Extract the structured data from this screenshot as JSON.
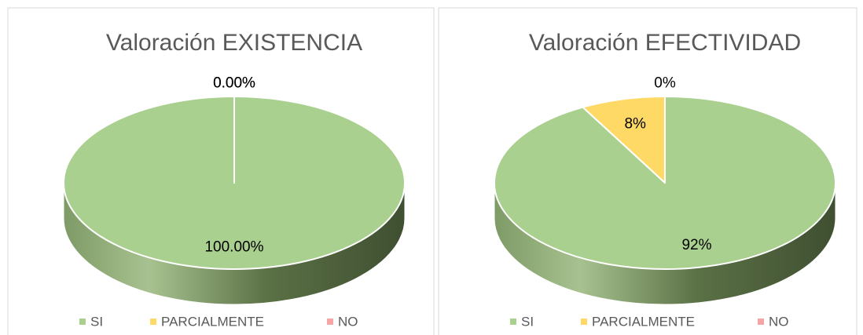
{
  "chart_data": [
    {
      "type": "pie3d",
      "title": "Valoración EXISTENCIA",
      "categories": [
        "SI",
        "PARCIALMENTE",
        "NO"
      ],
      "values": [
        100,
        0,
        0
      ],
      "value_labels": [
        "100.00%",
        "0.00%",
        "0.00%"
      ],
      "colors": [
        "#a9d08e",
        "#ffd966",
        "#f4a6a6"
      ]
    },
    {
      "type": "pie3d",
      "title": "Valoración EFECTIVIDAD",
      "categories": [
        "SI",
        "PARCIALMENTE",
        "NO"
      ],
      "values": [
        92,
        8,
        0
      ],
      "value_labels": [
        "92%",
        "8%",
        "0%"
      ],
      "colors": [
        "#a9d08e",
        "#ffd966",
        "#f4a6a6"
      ]
    }
  ]
}
